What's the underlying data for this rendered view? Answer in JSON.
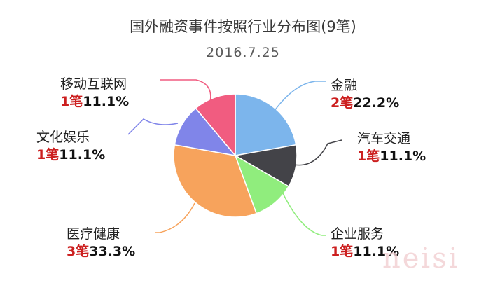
{
  "chart_data": {
    "type": "pie",
    "title": "国外融资事件按照行业分布图(9笔)",
    "subtitle": "2016.7.25",
    "count_unit": "笔",
    "slices": [
      {
        "label": "金融",
        "count": 2,
        "percent": "22.2%",
        "color": "#7cb5ec"
      },
      {
        "label": "汽车交通",
        "count": 1,
        "percent": "11.1%",
        "color": "#434348"
      },
      {
        "label": "企业服务",
        "count": 1,
        "percent": "11.1%",
        "color": "#90ed7d"
      },
      {
        "label": "医疗健康",
        "count": 3,
        "percent": "33.3%",
        "color": "#f7a35c"
      },
      {
        "label": "文化娱乐",
        "count": 1,
        "percent": "11.1%",
        "color": "#8085e9"
      },
      {
        "label": "移动互联网",
        "count": 1,
        "percent": "11.1%",
        "color": "#f15c80"
      }
    ]
  },
  "watermark": "neisi"
}
